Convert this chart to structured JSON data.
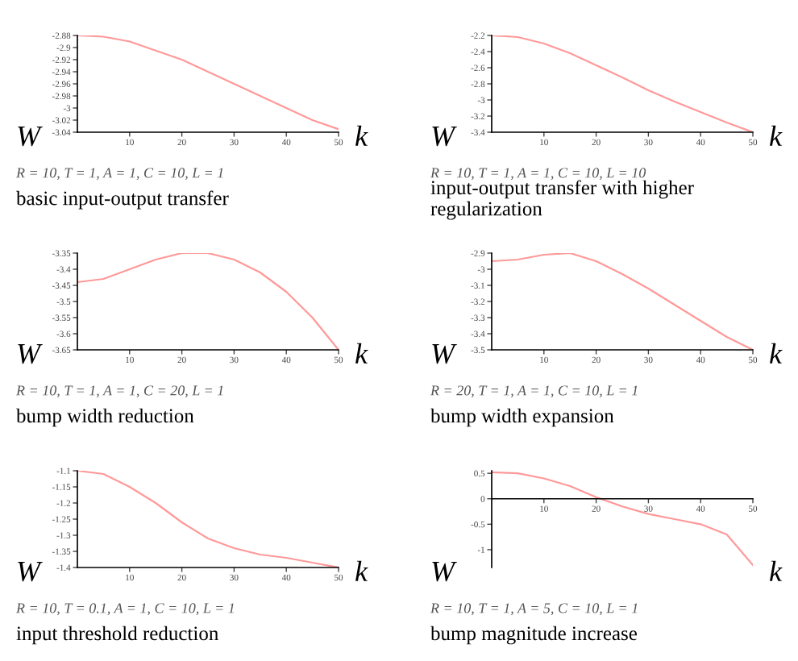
{
  "chart_data": [
    {
      "type": "line",
      "title": "basic input-output transfer",
      "subtitle": "R = 10, T = 1, A = 1, C = 10, L = 1",
      "xlabel": "k",
      "ylabel": "W",
      "x": [
        0,
        5,
        10,
        15,
        20,
        25,
        30,
        35,
        40,
        45,
        50
      ],
      "series": [
        {
          "color": "#ff9999",
          "values": [
            -2.88,
            -2.882,
            -2.89,
            -2.905,
            -2.92,
            -2.94,
            -2.96,
            -2.98,
            -3.0,
            -3.02,
            -3.035
          ]
        }
      ],
      "xlim": [
        0,
        50
      ],
      "xticks": [
        10,
        20,
        30,
        40,
        50
      ],
      "ylim": [
        -3.04,
        -2.88
      ],
      "yticks": [
        -2.88,
        -2.9,
        -2.92,
        -2.94,
        -2.96,
        -2.98,
        -3,
        -3.02,
        -3.04
      ],
      "grid": false,
      "legend": false
    },
    {
      "type": "line",
      "title": "input-output transfer with higher regularization",
      "subtitle": "R = 10, T = 1, A = 1, C = 10, L = 10",
      "xlabel": "k",
      "ylabel": "W",
      "x": [
        0,
        5,
        10,
        15,
        20,
        25,
        30,
        35,
        40,
        45,
        50
      ],
      "series": [
        {
          "color": "#ff9999",
          "values": [
            -2.2,
            -2.22,
            -2.3,
            -2.42,
            -2.57,
            -2.72,
            -2.88,
            -3.02,
            -3.15,
            -3.28,
            -3.4
          ]
        }
      ],
      "xlim": [
        0,
        50
      ],
      "xticks": [
        10,
        20,
        30,
        40,
        50
      ],
      "ylim": [
        -3.4,
        -2.2
      ],
      "yticks": [
        -2.2,
        -2.4,
        -2.6,
        -2.8,
        -3,
        -3.2,
        -3.4
      ],
      "grid": false,
      "legend": false
    },
    {
      "type": "line",
      "title": "bump width reduction",
      "subtitle": "R = 10, T = 1, A = 1, C = 20, L = 1",
      "xlabel": "k",
      "ylabel": "W",
      "x": [
        0,
        5,
        10,
        15,
        20,
        25,
        30,
        35,
        40,
        45,
        50
      ],
      "series": [
        {
          "color": "#ff9999",
          "values": [
            -3.44,
            -3.43,
            -3.4,
            -3.37,
            -3.35,
            -3.35,
            -3.37,
            -3.41,
            -3.47,
            -3.55,
            -3.65
          ]
        }
      ],
      "xlim": [
        0,
        50
      ],
      "xticks": [
        10,
        20,
        30,
        40,
        50
      ],
      "ylim": [
        -3.65,
        -3.35
      ],
      "yticks": [
        -3.35,
        -3.4,
        -3.45,
        -3.5,
        -3.55,
        -3.6,
        -3.65
      ],
      "grid": false,
      "legend": false
    },
    {
      "type": "line",
      "title": "bump width expansion",
      "subtitle": "R = 20, T = 1, A = 1, C = 10, L = 1",
      "xlabel": "k",
      "ylabel": "W",
      "x": [
        0,
        5,
        10,
        15,
        20,
        25,
        30,
        35,
        40,
        45,
        50
      ],
      "series": [
        {
          "color": "#ff9999",
          "values": [
            -2.95,
            -2.94,
            -2.91,
            -2.9,
            -2.95,
            -3.03,
            -3.12,
            -3.22,
            -3.32,
            -3.42,
            -3.5
          ]
        }
      ],
      "xlim": [
        0,
        50
      ],
      "xticks": [
        10,
        20,
        30,
        40,
        50
      ],
      "ylim": [
        -3.5,
        -2.9
      ],
      "yticks": [
        -2.9,
        -3,
        -3.1,
        -3.2,
        -3.3,
        -3.4,
        -3.5
      ],
      "grid": false,
      "legend": false
    },
    {
      "type": "line",
      "title": "input threshold reduction",
      "subtitle": "R = 10, T = 0.1, A = 1, C = 10, L = 1",
      "xlabel": "k",
      "ylabel": "W",
      "x": [
        0,
        5,
        10,
        15,
        20,
        25,
        30,
        35,
        40,
        45,
        50
      ],
      "series": [
        {
          "color": "#ff9999",
          "values": [
            -1.1,
            -1.11,
            -1.15,
            -1.2,
            -1.26,
            -1.31,
            -1.34,
            -1.36,
            -1.37,
            -1.385,
            -1.4
          ]
        }
      ],
      "xlim": [
        0,
        50
      ],
      "xticks": [
        10,
        20,
        30,
        40,
        50
      ],
      "ylim": [
        -1.4,
        -1.1
      ],
      "yticks": [
        -1.1,
        -1.15,
        -1.2,
        -1.25,
        -1.3,
        -1.35,
        -1.4
      ],
      "grid": false,
      "legend": false
    },
    {
      "type": "line",
      "title": "bump magnitude increase",
      "subtitle": "R = 10, T = 1, A = 5, C = 10, L = 1",
      "xlabel": "k",
      "ylabel": "W",
      "x": [
        0,
        5,
        10,
        15,
        20,
        25,
        30,
        35,
        40,
        45,
        50
      ],
      "series": [
        {
          "color": "#ff9999",
          "values": [
            0.52,
            0.5,
            0.4,
            0.25,
            0.03,
            -0.15,
            -0.3,
            -0.4,
            -0.5,
            -0.7,
            -1.3
          ]
        }
      ],
      "xlim": [
        0,
        50
      ],
      "xticks": [
        10,
        20,
        30,
        40,
        50
      ],
      "ylim": [
        -1.35,
        0.55
      ],
      "yticks": [
        0.5,
        0,
        -0.5,
        -1
      ],
      "grid": false,
      "legend": false
    }
  ]
}
